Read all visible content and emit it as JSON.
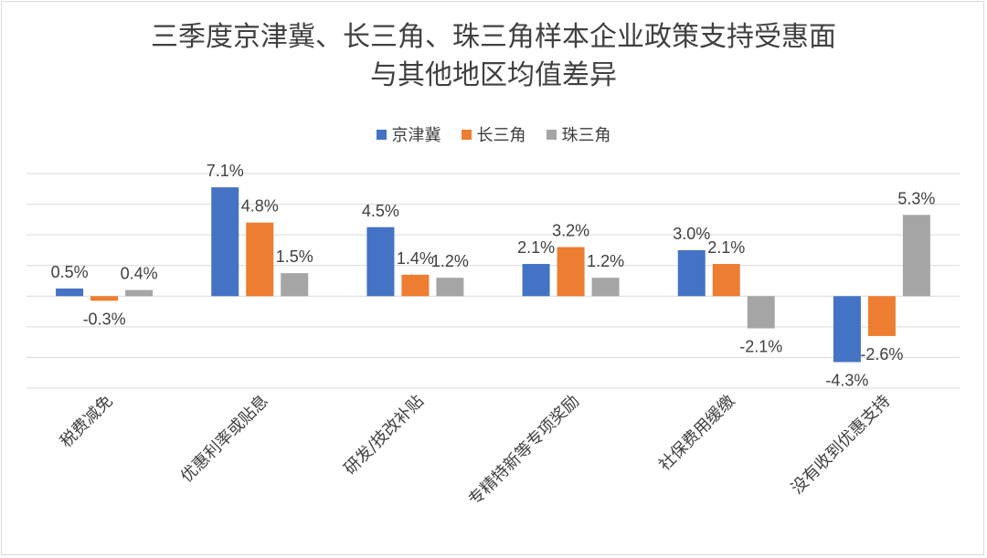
{
  "chart_data": {
    "type": "bar",
    "title_lines": [
      "三季度京津冀、长三角、珠三角样本企业政策支持受惠面",
      "与其他地区均值差异"
    ],
    "categories": [
      "税费减免",
      "优惠利率或贴息",
      "研发/技改补贴",
      "专精特新等专项奖励",
      "社保费用缓缴",
      "没有收到优惠支持"
    ],
    "series": [
      {
        "name": "京津冀",
        "color": "#4472c4",
        "values": [
          0.5,
          7.1,
          4.5,
          2.1,
          3.0,
          -4.3
        ],
        "labels": [
          "0.5%",
          "7.1%",
          "4.5%",
          "2.1%",
          "3.0%",
          "-4.3%"
        ]
      },
      {
        "name": "长三角",
        "color": "#ed7d31",
        "values": [
          -0.3,
          4.8,
          1.4,
          3.2,
          2.1,
          -2.6
        ],
        "labels": [
          "-0.3%",
          "4.8%",
          "1.4%",
          "3.2%",
          "2.1%",
          "-2.6%"
        ]
      },
      {
        "name": "珠三角",
        "color": "#a5a5a5",
        "values": [
          0.4,
          1.5,
          1.2,
          1.2,
          -2.1,
          5.3
        ],
        "labels": [
          "0.4%",
          "1.5%",
          "1.2%",
          "1.2%",
          "-2.1%",
          "5.3%"
        ]
      }
    ],
    "ylim": [
      -6,
      8
    ],
    "grid": true,
    "legend_position": "top"
  }
}
